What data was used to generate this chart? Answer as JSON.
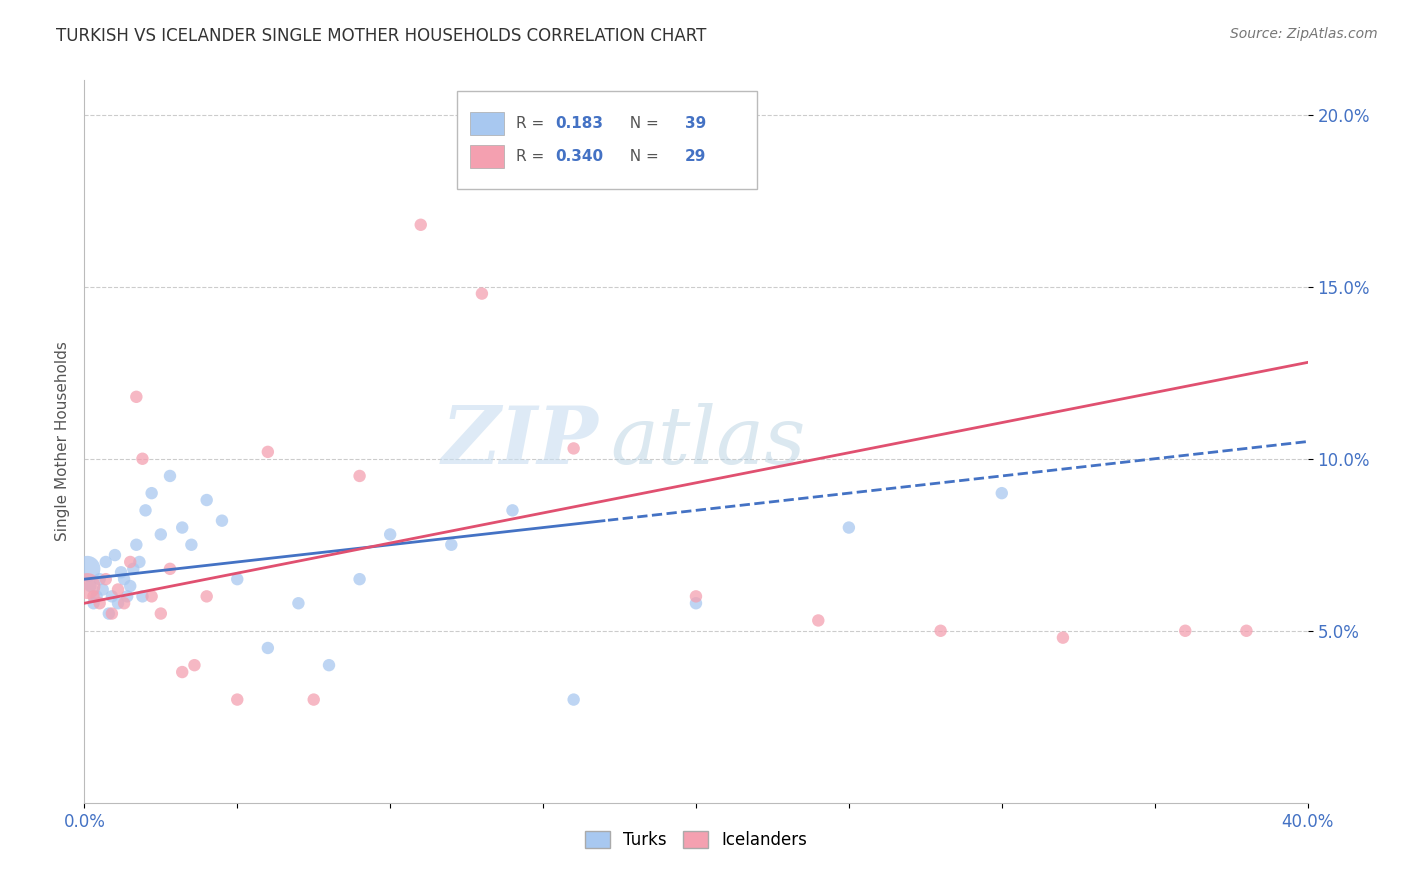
{
  "title": "TURKISH VS ICELANDER SINGLE MOTHER HOUSEHOLDS CORRELATION CHART",
  "source": "Source: ZipAtlas.com",
  "ylabel": "Single Mother Households",
  "xlim": [
    0.0,
    0.4
  ],
  "ylim": [
    0.0,
    0.21
  ],
  "ytick_positions": [
    0.05,
    0.1,
    0.15,
    0.2
  ],
  "ytick_labels": [
    "5.0%",
    "10.0%",
    "15.0%",
    "20.0%"
  ],
  "xtick_positions": [
    0.0,
    0.05,
    0.1,
    0.15,
    0.2,
    0.25,
    0.3,
    0.35,
    0.4
  ],
  "xtick_labels": [
    "0.0%",
    "",
    "",
    "",
    "",
    "",
    "",
    "",
    "40.0%"
  ],
  "turks_color": "#A8C8F0",
  "icelanders_color": "#F4A0B0",
  "turks_line_color": "#4472C4",
  "icelanders_line_color": "#E05070",
  "legend_R_turks": "0.183",
  "legend_N_turks": "39",
  "legend_R_icelanders": "0.340",
  "legend_N_icelanders": "29",
  "watermark_zip": "ZIP",
  "watermark_atlas": "atlas",
  "turks_x": [
    0.001,
    0.002,
    0.003,
    0.004,
    0.005,
    0.006,
    0.007,
    0.008,
    0.009,
    0.01,
    0.011,
    0.012,
    0.013,
    0.014,
    0.015,
    0.016,
    0.017,
    0.018,
    0.019,
    0.02,
    0.022,
    0.025,
    0.028,
    0.032,
    0.035,
    0.04,
    0.045,
    0.05,
    0.06,
    0.07,
    0.08,
    0.09,
    0.1,
    0.12,
    0.14,
    0.16,
    0.2,
    0.25,
    0.3
  ],
  "turks_y": [
    0.068,
    0.063,
    0.058,
    0.06,
    0.065,
    0.062,
    0.07,
    0.055,
    0.06,
    0.072,
    0.058,
    0.067,
    0.065,
    0.06,
    0.063,
    0.068,
    0.075,
    0.07,
    0.06,
    0.085,
    0.09,
    0.078,
    0.095,
    0.08,
    0.075,
    0.088,
    0.082,
    0.065,
    0.045,
    0.058,
    0.04,
    0.065,
    0.078,
    0.075,
    0.085,
    0.03,
    0.058,
    0.08,
    0.09
  ],
  "turks_sizes": [
    350,
    80,
    80,
    80,
    80,
    80,
    80,
    80,
    80,
    80,
    80,
    80,
    80,
    80,
    80,
    80,
    80,
    80,
    80,
    80,
    80,
    80,
    80,
    80,
    80,
    80,
    80,
    80,
    80,
    80,
    80,
    80,
    80,
    80,
    80,
    80,
    80,
    80,
    80
  ],
  "icelanders_x": [
    0.001,
    0.003,
    0.005,
    0.007,
    0.009,
    0.011,
    0.013,
    0.015,
    0.017,
    0.019,
    0.022,
    0.025,
    0.028,
    0.032,
    0.036,
    0.04,
    0.05,
    0.06,
    0.075,
    0.09,
    0.11,
    0.13,
    0.16,
    0.2,
    0.24,
    0.28,
    0.32,
    0.36,
    0.38
  ],
  "icelanders_y": [
    0.063,
    0.06,
    0.058,
    0.065,
    0.055,
    0.062,
    0.058,
    0.07,
    0.118,
    0.1,
    0.06,
    0.055,
    0.068,
    0.038,
    0.04,
    0.06,
    0.03,
    0.102,
    0.03,
    0.095,
    0.168,
    0.148,
    0.103,
    0.06,
    0.053,
    0.05,
    0.048,
    0.05,
    0.05
  ],
  "icelanders_sizes": [
    350,
    80,
    80,
    80,
    80,
    80,
    80,
    80,
    80,
    80,
    80,
    80,
    80,
    80,
    80,
    80,
    80,
    80,
    80,
    80,
    80,
    80,
    80,
    80,
    80,
    80,
    80,
    80,
    80
  ]
}
